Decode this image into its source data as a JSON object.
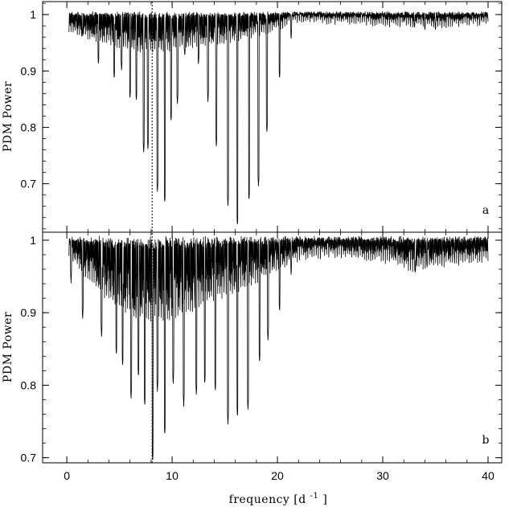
{
  "chart_data": {
    "type": "line",
    "xlabel": "frequency [d",
    "xlabel_sup": "-1",
    "xlabel_close": "]",
    "xlim": [
      -2.3,
      41.3
    ],
    "x_ticks": [
      0,
      10,
      20,
      30,
      40
    ],
    "x_tick_labels": [
      "0",
      "10",
      "20",
      "30",
      "40"
    ],
    "marked_frequency": 8.1,
    "panels": [
      {
        "panel_label": "a",
        "ylabel": "PDM Power",
        "ylim": [
          0.614,
          1.023
        ],
        "y_ticks": [
          0.7,
          0.8,
          0.9,
          1.0
        ],
        "y_tick_labels": [
          "0.7",
          "0.8",
          "0.9",
          "1"
        ],
        "noise_floor_x": [
          0.2,
          2,
          4,
          6,
          8,
          10,
          12,
          14,
          16,
          18,
          20,
          21,
          22,
          25,
          30,
          35,
          40
        ],
        "noise_floor_y": [
          0.975,
          0.965,
          0.955,
          0.945,
          0.94,
          0.945,
          0.95,
          0.955,
          0.96,
          0.97,
          0.98,
          0.99,
          0.993,
          0.992,
          0.988,
          0.985,
          0.99
        ],
        "dips": [
          {
            "x": 1.5,
            "y": 0.96
          },
          {
            "x": 3.0,
            "y": 0.91
          },
          {
            "x": 4.5,
            "y": 0.885
          },
          {
            "x": 5.2,
            "y": 0.9
          },
          {
            "x": 6.0,
            "y": 0.85
          },
          {
            "x": 6.6,
            "y": 0.845
          },
          {
            "x": 7.3,
            "y": 0.755
          },
          {
            "x": 7.7,
            "y": 0.76
          },
          {
            "x": 8.6,
            "y": 0.685
          },
          {
            "x": 9.3,
            "y": 0.665
          },
          {
            "x": 9.9,
            "y": 0.81
          },
          {
            "x": 10.5,
            "y": 0.84
          },
          {
            "x": 11.2,
            "y": 0.925
          },
          {
            "x": 12.5,
            "y": 0.91
          },
          {
            "x": 13.4,
            "y": 0.845
          },
          {
            "x": 14.2,
            "y": 0.765
          },
          {
            "x": 15.3,
            "y": 0.66
          },
          {
            "x": 16.2,
            "y": 0.625
          },
          {
            "x": 17.3,
            "y": 0.67
          },
          {
            "x": 18.2,
            "y": 0.695
          },
          {
            "x": 19.0,
            "y": 0.79
          },
          {
            "x": 20.2,
            "y": 0.885
          },
          {
            "x": 21.3,
            "y": 0.955
          },
          {
            "x": 33.0,
            "y": 0.975
          },
          {
            "x": 34.0,
            "y": 0.97
          },
          {
            "x": 35.0,
            "y": 0.972
          }
        ]
      },
      {
        "panel_label": "b",
        "ylabel": "PDM Power",
        "ylim": [
          0.693,
          1.011
        ],
        "y_ticks": [
          0.7,
          0.8,
          0.9,
          1.0
        ],
        "y_tick_labels": [
          "0.7",
          "0.8",
          "0.9",
          "1"
        ],
        "noise_floor_x": [
          0.2,
          2,
          4,
          6,
          8,
          10,
          12,
          14,
          16,
          18,
          20,
          22,
          25,
          30,
          33,
          35,
          40
        ],
        "noise_floor_y": [
          0.985,
          0.95,
          0.925,
          0.905,
          0.895,
          0.9,
          0.91,
          0.925,
          0.935,
          0.95,
          0.965,
          0.98,
          0.985,
          0.978,
          0.965,
          0.97,
          0.98
        ],
        "dips": [
          {
            "x": 0.4,
            "y": 0.94
          },
          {
            "x": 1.5,
            "y": 0.89
          },
          {
            "x": 3.3,
            "y": 0.865
          },
          {
            "x": 4.7,
            "y": 0.84
          },
          {
            "x": 5.3,
            "y": 0.825
          },
          {
            "x": 6.1,
            "y": 0.78
          },
          {
            "x": 6.8,
            "y": 0.81
          },
          {
            "x": 7.4,
            "y": 0.77
          },
          {
            "x": 8.15,
            "y": 0.693
          },
          {
            "x": 8.6,
            "y": 0.79
          },
          {
            "x": 9.3,
            "y": 0.73
          },
          {
            "x": 10.1,
            "y": 0.8
          },
          {
            "x": 11.1,
            "y": 0.77
          },
          {
            "x": 12.3,
            "y": 0.785
          },
          {
            "x": 13.1,
            "y": 0.8
          },
          {
            "x": 14.1,
            "y": 0.79
          },
          {
            "x": 15.3,
            "y": 0.745
          },
          {
            "x": 16.2,
            "y": 0.755
          },
          {
            "x": 17.2,
            "y": 0.765
          },
          {
            "x": 18.3,
            "y": 0.83
          },
          {
            "x": 19.1,
            "y": 0.86
          },
          {
            "x": 20.2,
            "y": 0.9
          },
          {
            "x": 21.3,
            "y": 0.95
          },
          {
            "x": 33.1,
            "y": 0.955
          },
          {
            "x": 34.2,
            "y": 0.96
          }
        ]
      }
    ]
  }
}
